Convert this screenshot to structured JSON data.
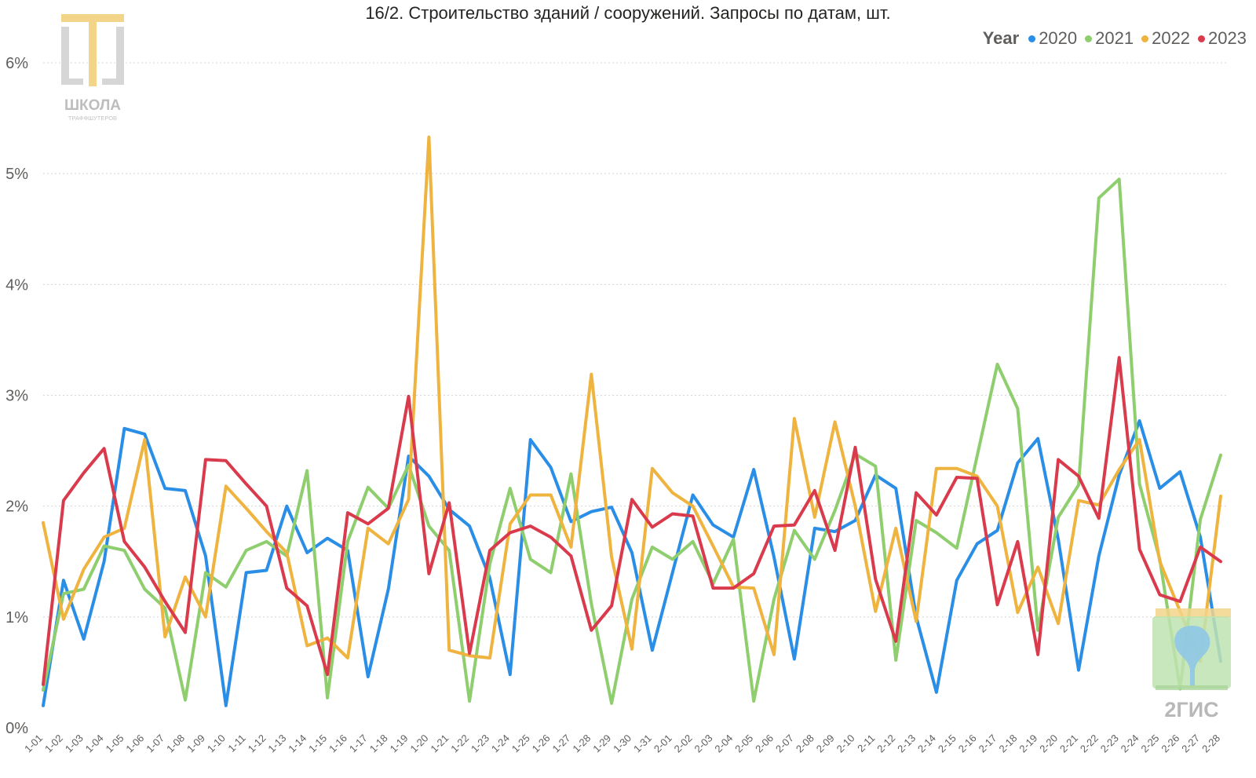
{
  "title": "16/2. Строительство зданий / сооружений. Запросы по датам, шт.",
  "legend": {
    "title": "Year",
    "items": [
      {
        "label": "2020",
        "color": "#2a8ee6"
      },
      {
        "label": "2021",
        "color": "#8fce6e"
      },
      {
        "label": "2022",
        "color": "#efb33f"
      },
      {
        "label": "2023",
        "color": "#d93b4d"
      }
    ]
  },
  "logos": {
    "school": {
      "text": "ШКОЛА",
      "subtext": "ТРАФФШУТЕРОВ"
    },
    "gis": {
      "text": "2ГИС"
    }
  },
  "chart_data": {
    "type": "line",
    "title": "16/2. Строительство зданий / сооружений. Запросы по датам, шт.",
    "xlabel": "",
    "ylabel": "",
    "ylim": [
      0,
      6
    ],
    "yticks": [
      "0%",
      "1%",
      "2%",
      "3%",
      "4%",
      "5%",
      "6%"
    ],
    "grid": true,
    "legend_position": "top-right",
    "categories": [
      "1-01",
      "1-02",
      "1-03",
      "1-04",
      "1-05",
      "1-06",
      "1-07",
      "1-08",
      "1-09",
      "1-10",
      "1-11",
      "1-12",
      "1-13",
      "1-14",
      "1-15",
      "1-16",
      "1-17",
      "1-18",
      "1-19",
      "1-20",
      "1-21",
      "1-22",
      "1-23",
      "1-24",
      "1-25",
      "1-26",
      "1-27",
      "1-28",
      "1-29",
      "1-30",
      "1-31",
      "2-01",
      "2-02",
      "2-03",
      "2-04",
      "2-05",
      "2-06",
      "2-07",
      "2-08",
      "2-09",
      "2-10",
      "2-11",
      "2-12",
      "2-13",
      "2-14",
      "2-15",
      "2-16",
      "2-17",
      "2-18",
      "2-19",
      "2-20",
      "2-21",
      "2-22",
      "2-23",
      "2-24",
      "2-25",
      "2-26",
      "2-27",
      "2-28"
    ],
    "series": [
      {
        "name": "2020",
        "color": "#2a8ee6",
        "values": [
          0.2,
          1.33,
          0.8,
          1.5,
          2.7,
          2.65,
          2.16,
          2.14,
          1.55,
          0.2,
          1.4,
          1.42,
          2.0,
          1.58,
          1.71,
          1.6,
          0.46,
          1.25,
          2.45,
          2.27,
          1.97,
          1.82,
          1.35,
          0.48,
          2.6,
          2.35,
          1.86,
          1.95,
          1.99,
          1.58,
          0.7,
          1.4,
          2.1,
          1.83,
          1.72,
          2.33,
          1.54,
          0.62,
          1.8,
          1.77,
          1.87,
          2.28,
          2.16,
          1.0,
          0.32,
          1.33,
          1.66,
          1.78,
          2.39,
          2.61,
          1.7,
          0.52,
          1.55,
          2.28,
          2.77,
          2.16,
          2.31,
          1.72,
          0.6
        ]
      },
      {
        "name": "2021",
        "color": "#8fce6e",
        "values": [
          0.34,
          1.21,
          1.25,
          1.64,
          1.6,
          1.25,
          1.08,
          0.25,
          1.4,
          1.27,
          1.6,
          1.68,
          1.55,
          2.32,
          0.27,
          1.68,
          2.17,
          1.98,
          2.37,
          1.82,
          1.6,
          0.24,
          1.48,
          2.16,
          1.52,
          1.4,
          2.29,
          1.12,
          0.22,
          1.16,
          1.63,
          1.52,
          1.68,
          1.3,
          1.7,
          0.24,
          1.16,
          1.78,
          1.52,
          1.96,
          2.47,
          2.36,
          0.61,
          1.87,
          1.76,
          1.62,
          2.45,
          3.28,
          2.88,
          0.88,
          1.9,
          2.19,
          4.78,
          4.95,
          2.2,
          1.52,
          0.35,
          1.88,
          2.46
        ]
      },
      {
        "name": "2022",
        "color": "#efb33f",
        "values": [
          1.85,
          0.98,
          1.43,
          1.72,
          1.8,
          2.6,
          0.82,
          1.36,
          1.0,
          2.18,
          1.98,
          1.77,
          1.58,
          0.74,
          0.81,
          0.63,
          1.8,
          1.66,
          2.06,
          5.33,
          0.7,
          0.65,
          0.63,
          1.84,
          2.1,
          2.1,
          1.63,
          3.19,
          1.54,
          0.71,
          2.34,
          2.12,
          2.0,
          1.64,
          1.27,
          1.26,
          0.66,
          2.79,
          1.9,
          2.76,
          2.0,
          1.05,
          1.8,
          0.96,
          2.34,
          2.34,
          2.27,
          2.0,
          1.04,
          1.45,
          0.94,
          2.05,
          2.01,
          2.33,
          2.6,
          1.5,
          1.05,
          0.6,
          2.09
        ]
      },
      {
        "name": "2023",
        "color": "#d93b4d",
        "values": [
          0.39,
          2.05,
          2.3,
          2.52,
          1.68,
          1.45,
          1.14,
          0.86,
          2.42,
          2.41,
          2.2,
          2.0,
          1.26,
          1.1,
          0.48,
          1.94,
          1.84,
          1.98,
          2.99,
          1.39,
          2.03,
          0.67,
          1.6,
          1.76,
          1.82,
          1.72,
          1.55,
          0.88,
          1.1,
          2.06,
          1.81,
          1.93,
          1.91,
          1.26,
          1.26,
          1.39,
          1.82,
          1.83,
          2.14,
          1.6,
          2.53,
          1.34,
          0.78,
          2.12,
          1.92,
          2.26,
          2.25,
          1.11,
          1.68,
          0.66,
          2.42,
          2.27,
          1.89,
          3.34,
          1.61,
          1.2,
          1.14,
          1.63,
          1.5
        ]
      }
    ]
  }
}
